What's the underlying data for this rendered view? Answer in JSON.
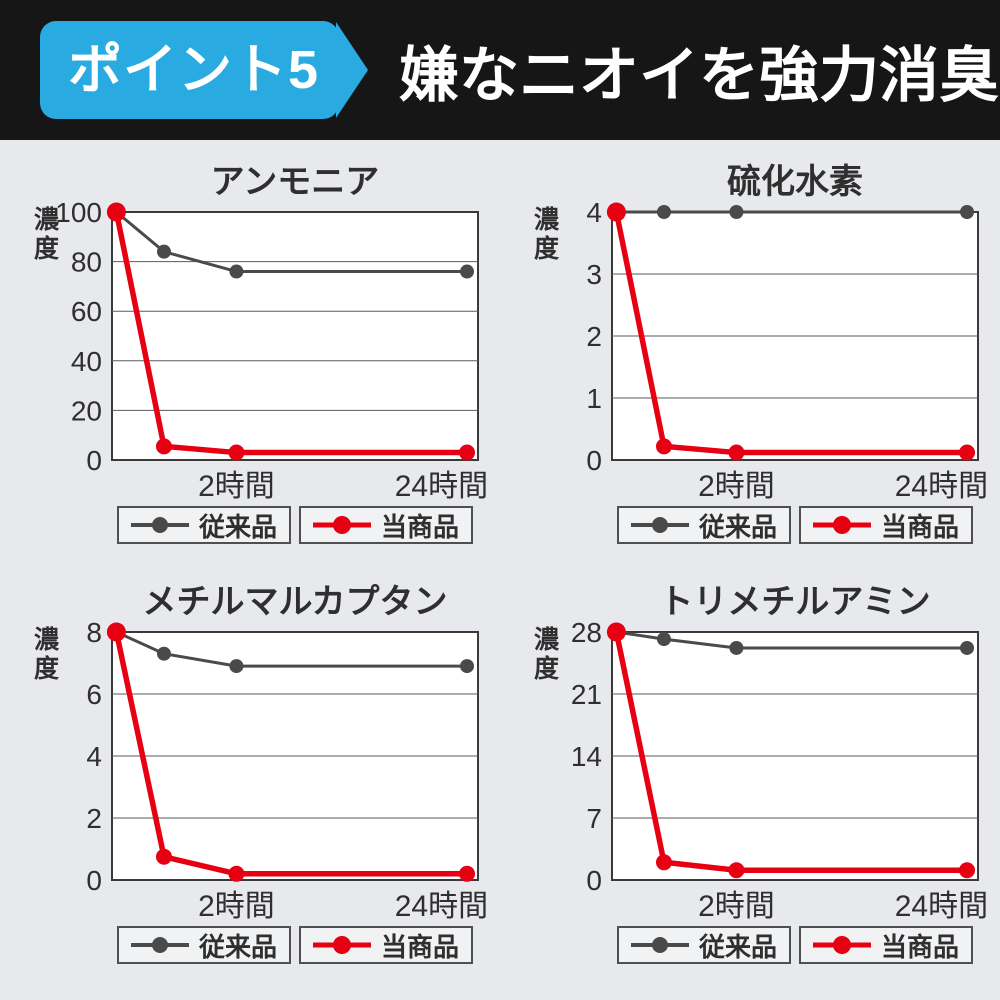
{
  "header": {
    "badge": "ポイント5",
    "title": "嫌なニオイを強力消臭",
    "badge_color": "#29abe2",
    "bar_color": "#161616"
  },
  "legend": {
    "series": [
      {
        "label": "従来品",
        "color": "#4a4a4a"
      },
      {
        "label": "当商品",
        "color": "#e60012"
      }
    ]
  },
  "chart_data": [
    {
      "type": "line",
      "title": "アンモニア",
      "ylabel": "濃度",
      "x_labels": [
        "2時間",
        "24時間"
      ],
      "x_positions": [
        0.012,
        0.142,
        0.34,
        0.97
      ],
      "yticks": [
        0,
        20,
        40,
        60,
        80,
        100
      ],
      "ymax": 100,
      "grid": true,
      "legend_position": "bottom",
      "series": [
        {
          "name": "従来品",
          "color": "#4a4a4a",
          "values": [
            100,
            84,
            76,
            76
          ]
        },
        {
          "name": "当商品",
          "color": "#e60012",
          "values": [
            100,
            5.5,
            3,
            3
          ]
        }
      ]
    },
    {
      "type": "line",
      "title": "硫化水素",
      "ylabel": "濃度",
      "x_labels": [
        "2時間",
        "24時間"
      ],
      "x_positions": [
        0.012,
        0.142,
        0.34,
        0.97
      ],
      "yticks": [
        0,
        1,
        2,
        3,
        4
      ],
      "ymax": 4,
      "grid": true,
      "legend_position": "bottom",
      "series": [
        {
          "name": "従来品",
          "color": "#4a4a4a",
          "values": [
            4,
            4,
            4,
            4
          ]
        },
        {
          "name": "当商品",
          "color": "#e60012",
          "values": [
            4,
            0.22,
            0.12,
            0.12
          ]
        }
      ]
    },
    {
      "type": "line",
      "title": "メチルマルカプタン",
      "ylabel": "濃度",
      "x_labels": [
        "2時間",
        "24時間"
      ],
      "x_positions": [
        0.012,
        0.142,
        0.34,
        0.97
      ],
      "yticks": [
        0,
        2,
        4,
        6,
        8
      ],
      "ymax": 8,
      "grid": true,
      "legend_position": "bottom",
      "series": [
        {
          "name": "従来品",
          "color": "#4a4a4a",
          "values": [
            8,
            7.3,
            6.9,
            6.9
          ]
        },
        {
          "name": "当商品",
          "color": "#e60012",
          "values": [
            8,
            0.75,
            0.2,
            0.2
          ]
        }
      ]
    },
    {
      "type": "line",
      "title": "トリメチルアミン",
      "ylabel": "濃度",
      "x_labels": [
        "2時間",
        "24時間"
      ],
      "x_positions": [
        0.012,
        0.142,
        0.34,
        0.97
      ],
      "yticks": [
        0,
        7,
        14,
        21,
        28
      ],
      "ymax": 28,
      "grid": true,
      "legend_position": "bottom",
      "series": [
        {
          "name": "従来品",
          "color": "#4a4a4a",
          "values": [
            28,
            27.2,
            26.2,
            26.2
          ]
        },
        {
          "name": "当商品",
          "color": "#e60012",
          "values": [
            28,
            2,
            1.1,
            1.1
          ]
        }
      ]
    }
  ]
}
